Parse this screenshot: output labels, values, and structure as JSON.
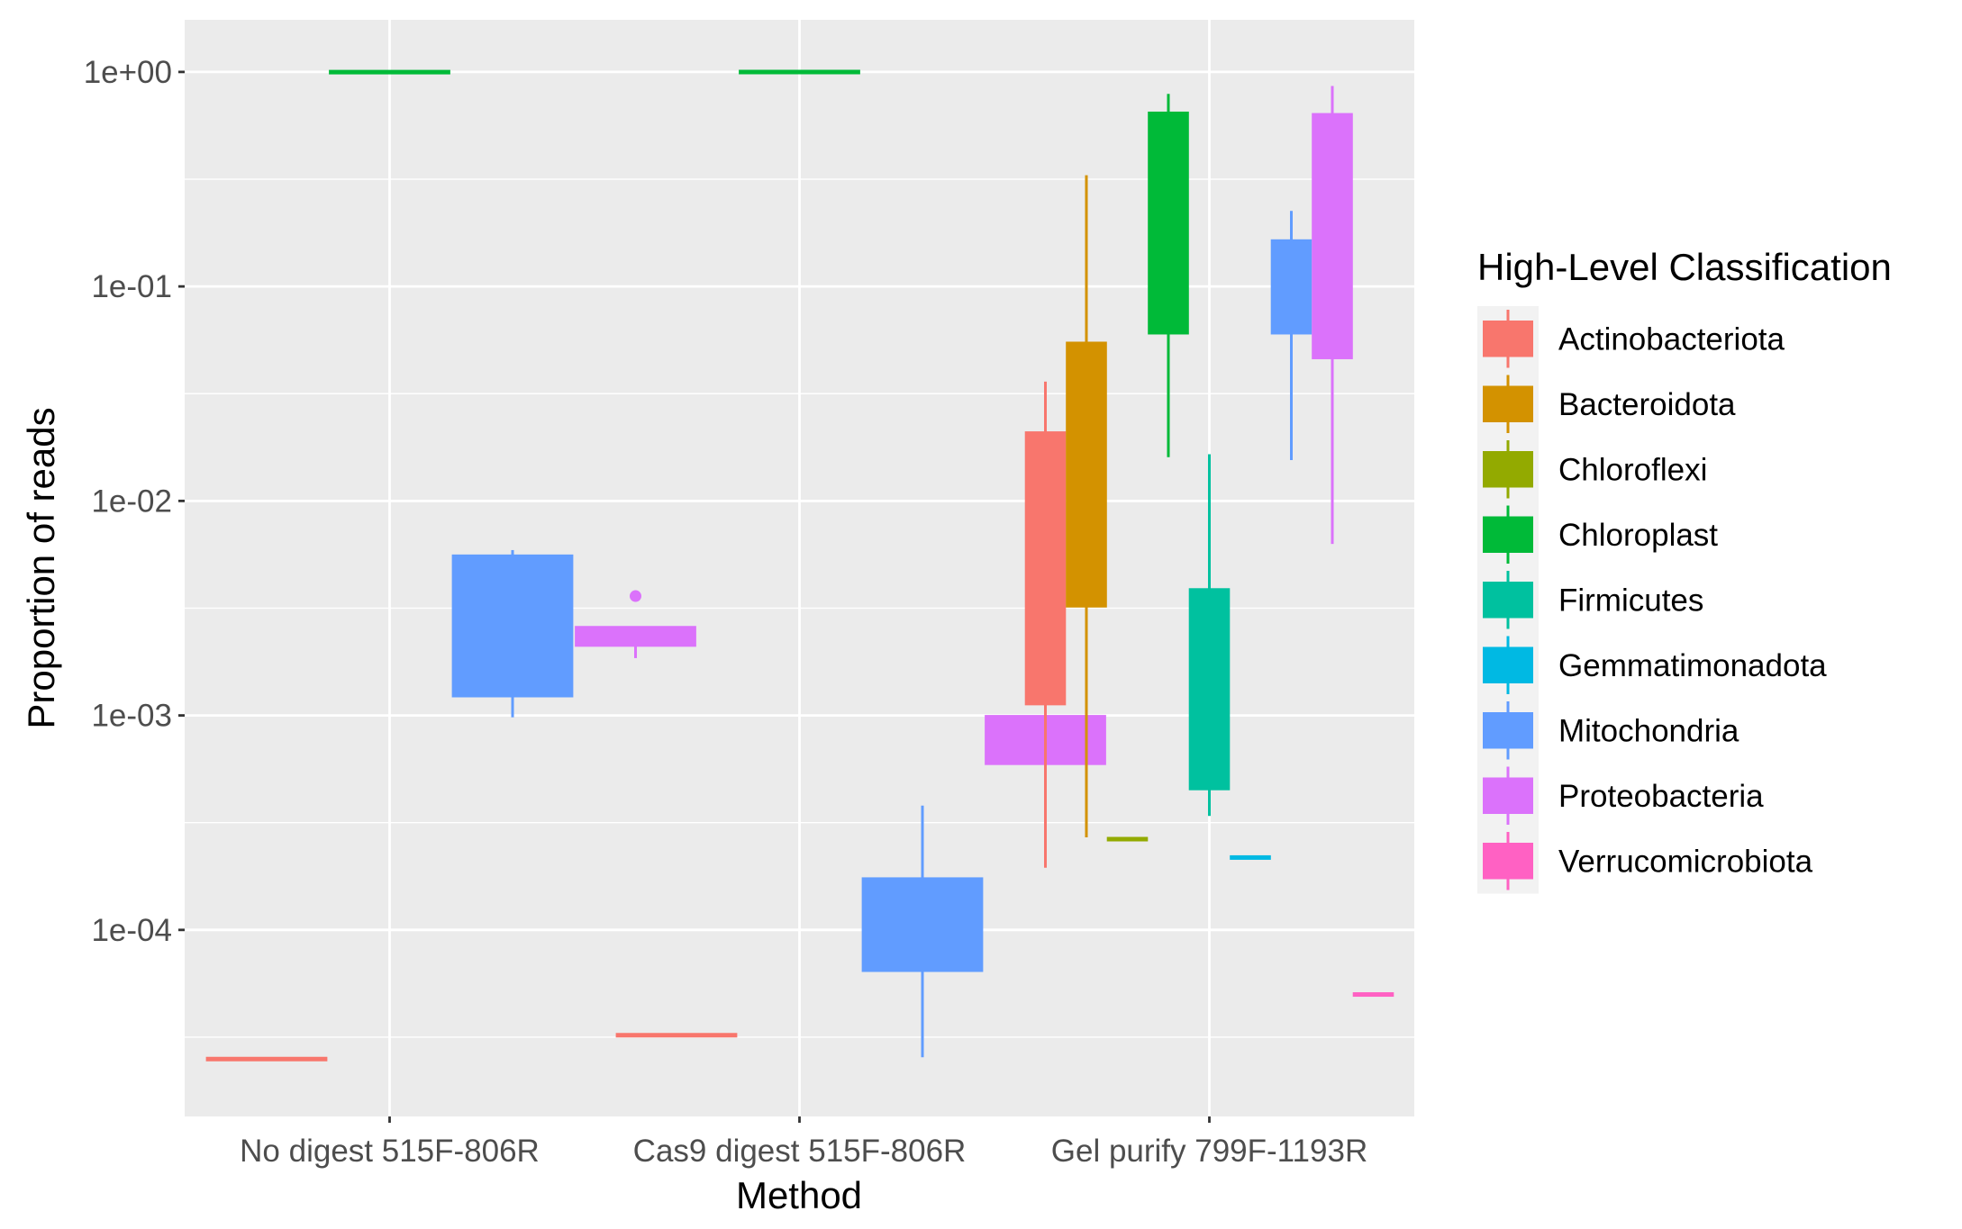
{
  "chart_data": {
    "type": "boxplot",
    "xlabel": "Method",
    "ylabel": "Proportion of reads",
    "y_scale": "log10",
    "ylim": [
      1.35e-05,
      1.75
    ],
    "y_ticks": [
      {
        "value": 0.0001,
        "label": "1e-04"
      },
      {
        "value": 0.001,
        "label": "1e-03"
      },
      {
        "value": 0.01,
        "label": "1e-02"
      },
      {
        "value": 0.1,
        "label": "1e-01"
      },
      {
        "value": 1,
        "label": "1e+00"
      }
    ],
    "categories": [
      "No digest 515F-806R",
      "Cas9 digest 515F-806R",
      "Gel purify 799F-1193R"
    ],
    "grid": true,
    "legend": {
      "title": "High-Level Classification",
      "position": "right",
      "entries": [
        {
          "name": "Actinobacteriota",
          "color": "#F8766D"
        },
        {
          "name": "Bacteroidota",
          "color": "#D39200"
        },
        {
          "name": "Chloroflexi",
          "color": "#93AA00"
        },
        {
          "name": "Chloroplast",
          "color": "#00BA38"
        },
        {
          "name": "Firmicutes",
          "color": "#00C19F"
        },
        {
          "name": "Gemmatimonadota",
          "color": "#00B9E3"
        },
        {
          "name": "Mitochondria",
          "color": "#619CFF"
        },
        {
          "name": "Proteobacteria",
          "color": "#DB72FB"
        },
        {
          "name": "Verrucomicrobiota",
          "color": "#FF61C3"
        }
      ]
    },
    "boxes": [
      {
        "category": "No digest 515F-806R",
        "series": "Actinobacteriota",
        "width": 3,
        "offset": 0,
        "min": 2.48e-05,
        "q1": 2.48e-05,
        "median": 2.48e-05,
        "q3": 2.52e-05,
        "max": 2.52e-05,
        "outliers": []
      },
      {
        "category": "No digest 515F-806R",
        "series": "Chloroplast",
        "width": 3,
        "offset": 1,
        "min": 0.997,
        "q1": 0.997,
        "median": 0.998,
        "q3": 0.999,
        "max": 0.999,
        "outliers": []
      },
      {
        "category": "No digest 515F-806R",
        "series": "Mitochondria",
        "width": 3,
        "offset": 2,
        "min": 0.00098,
        "q1": 0.00122,
        "median": 0.0025,
        "q3": 0.0056,
        "max": 0.0059,
        "outliers": []
      },
      {
        "category": "No digest 515F-806R",
        "series": "Proteobacteria",
        "width": 3,
        "offset": 3,
        "min": 0.00185,
        "q1": 0.0021,
        "median": 0.0023,
        "q3": 0.0026,
        "max": 0.0026,
        "outliers": [
          0.0036
        ]
      },
      {
        "category": "Cas9 digest 515F-806R",
        "series": "Actinobacteriota",
        "width": 3,
        "offset": 0,
        "min": 3.18e-05,
        "q1": 3.18e-05,
        "median": 3.22e-05,
        "q3": 3.28e-05,
        "max": 3.28e-05,
        "outliers": []
      },
      {
        "category": "Cas9 digest 515F-806R",
        "series": "Chloroplast",
        "width": 3,
        "offset": 1,
        "min": 0.998,
        "q1": 0.998,
        "median": 0.999,
        "q3": 1.0,
        "max": 1.0,
        "outliers": []
      },
      {
        "category": "Cas9 digest 515F-806R",
        "series": "Mitochondria",
        "width": 3,
        "offset": 2,
        "min": 2.55e-05,
        "q1": 6.4e-05,
        "median": 0.000105,
        "q3": 0.000175,
        "max": 0.00038,
        "outliers": []
      },
      {
        "category": "Cas9 digest 515F-806R",
        "series": "Proteobacteria",
        "width": 3,
        "offset": 3,
        "min": 0.00053,
        "q1": 0.00059,
        "median": 0.0008,
        "q3": 0.001,
        "max": 0.00105,
        "outliers": []
      },
      {
        "category": "Gel purify 799F-1193R",
        "series": "Actinobacteriota",
        "width": 9,
        "offset": 0,
        "min": 0.000195,
        "q1": 0.00112,
        "median": 0.0045,
        "q3": 0.021,
        "max": 0.036,
        "outliers": []
      },
      {
        "category": "Gel purify 799F-1193R",
        "series": "Bacteroidota",
        "width": 9,
        "offset": 1,
        "min": 0.00027,
        "q1": 0.0032,
        "median": 0.012,
        "q3": 0.055,
        "max": 0.33,
        "outliers": []
      },
      {
        "category": "Gel purify 799F-1193R",
        "series": "Chloroflexi",
        "width": 9,
        "offset": 2,
        "min": 0.00026,
        "q1": 0.00026,
        "median": 0.000265,
        "q3": 0.00027,
        "max": 0.00027,
        "outliers": []
      },
      {
        "category": "Gel purify 799F-1193R",
        "series": "Chloroplast",
        "width": 9,
        "offset": 3,
        "min": 0.016,
        "q1": 0.06,
        "median": 0.22,
        "q3": 0.65,
        "max": 0.79,
        "outliers": []
      },
      {
        "category": "Gel purify 799F-1193R",
        "series": "Firmicutes",
        "width": 9,
        "offset": 4,
        "min": 0.00034,
        "q1": 0.00045,
        "median": 0.0013,
        "q3": 0.0039,
        "max": 0.0165,
        "outliers": []
      },
      {
        "category": "Gel purify 799F-1193R",
        "series": "Gemmatimonadota",
        "width": 9,
        "offset": 5,
        "min": 0.000215,
        "q1": 0.000215,
        "median": 0.000218,
        "q3": 0.00022,
        "max": 0.00022,
        "outliers": []
      },
      {
        "category": "Gel purify 799F-1193R",
        "series": "Mitochondria",
        "width": 9,
        "offset": 6,
        "min": 0.0155,
        "q1": 0.06,
        "median": 0.1,
        "q3": 0.165,
        "max": 0.225,
        "outliers": []
      },
      {
        "category": "Gel purify 799F-1193R",
        "series": "Proteobacteria",
        "width": 9,
        "offset": 7,
        "min": 0.0063,
        "q1": 0.046,
        "median": 0.17,
        "q3": 0.64,
        "max": 0.86,
        "outliers": []
      },
      {
        "category": "Gel purify 799F-1193R",
        "series": "Verrucomicrobiota",
        "width": 9,
        "offset": 8,
        "min": 4.95e-05,
        "q1": 4.95e-05,
        "median": 5e-05,
        "q3": 5.05e-05,
        "max": 5.05e-05,
        "outliers": []
      }
    ]
  }
}
